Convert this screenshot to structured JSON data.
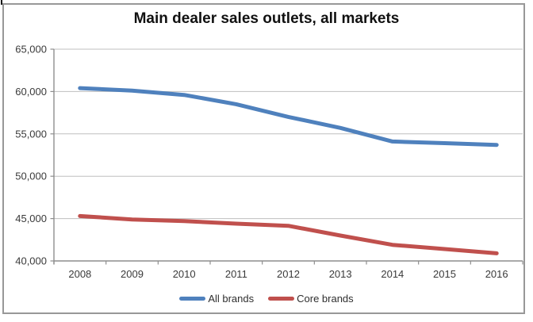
{
  "chart": {
    "title": "Main dealer sales outlets, all markets",
    "colors": {
      "all_brands": "#4F81BD",
      "core_brands": "#C0504D",
      "gridline": "#BFBFBF",
      "axis": "#8E8E8E",
      "label_text": "#3A3A3A",
      "frame_border": "#989898"
    }
  },
  "legend": {
    "entries": [
      {
        "label": "All brands",
        "color": "#4F81BD"
      },
      {
        "label": "Core brands",
        "color": "#C0504D"
      }
    ]
  },
  "chart_data": {
    "type": "line",
    "title": "Main dealer sales outlets, all markets",
    "categories": [
      "2008",
      "2009",
      "2010",
      "2011",
      "2012",
      "2013",
      "2014",
      "2015",
      "2016"
    ],
    "series": [
      {
        "name": "All brands",
        "color": "#4F81BD",
        "values": [
          60400,
          60100,
          59600,
          58500,
          57000,
          55700,
          54100,
          53900,
          53700
        ]
      },
      {
        "name": "Core brands",
        "color": "#C0504D",
        "values": [
          45300,
          44900,
          44700,
          44400,
          44150,
          43000,
          41900,
          41400,
          40900
        ]
      }
    ],
    "xlabel": "",
    "ylabel": "",
    "ylim": [
      40000,
      65000
    ],
    "ytick_step": 5000,
    "ytick_labels": [
      "40,000",
      "45,000",
      "50,000",
      "55,000",
      "60,000",
      "65,000"
    ],
    "grid": true,
    "legend_position": "bottom"
  }
}
